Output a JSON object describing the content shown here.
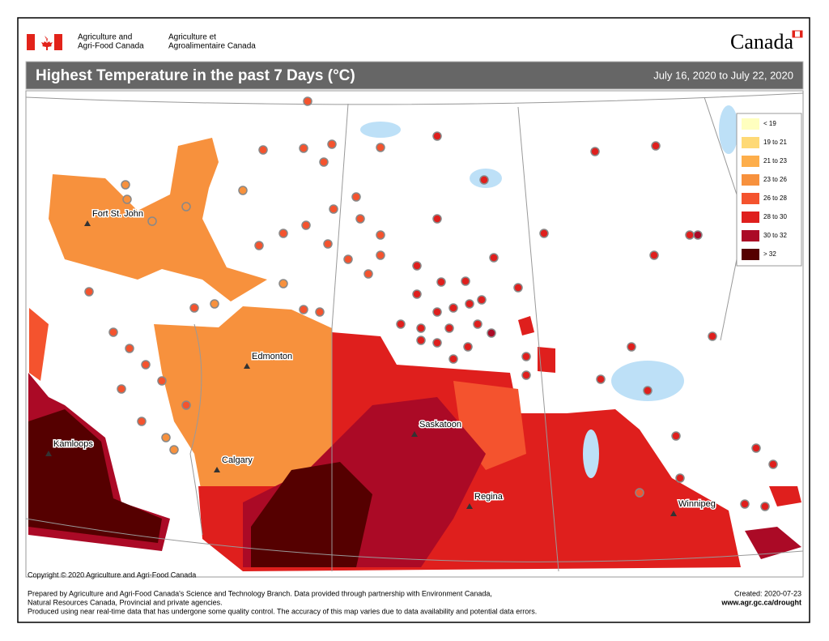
{
  "header": {
    "agency_en": [
      "Agriculture and",
      "Agri-Food Canada"
    ],
    "agency_fr": [
      "Agriculture et",
      "Agroalimentaire Canada"
    ],
    "wordmark": "Canada"
  },
  "title": "Highest Temperature in the past 7 Days (°C)",
  "date_range": "July 16, 2020 to July 22, 2020",
  "legend": {
    "items": [
      {
        "label": "< 19",
        "color": "#ffffbf"
      },
      {
        "label": "19 to 21",
        "color": "#fed976"
      },
      {
        "label": "21 to 23",
        "color": "#fdae4b"
      },
      {
        "label": "23 to 26",
        "color": "#f7913d"
      },
      {
        "label": "26 to 28",
        "color": "#f4532e"
      },
      {
        "label": "28 to 30",
        "color": "#df1f1d"
      },
      {
        "label": "30 to 32",
        "color": "#ab0a26"
      },
      {
        "label": "> 32",
        "color": "#550000"
      }
    ]
  },
  "cities": [
    "Fort St. John",
    "Edmonton",
    "Calgary",
    "Kamloops",
    "Saskatoon",
    "Regina",
    "Winnipeg"
  ],
  "copyright": "Copyright © 2020 Agriculture and Agri-Food Canada",
  "footer": {
    "lines": [
      "Prepared by Agriculture and Agri-Food Canada's Science and Technology Branch. Data provided through partnership with Environment Canada,",
      "Natural Resources Canada, Provincial and private agencies.",
      "Produced using near real-time data that has undergone some quality control. The accuracy of this map varies due to data availability and potential data errors."
    ],
    "created": "Created: 2020-07-23",
    "url": "www.agr.gc.ca/drought"
  }
}
